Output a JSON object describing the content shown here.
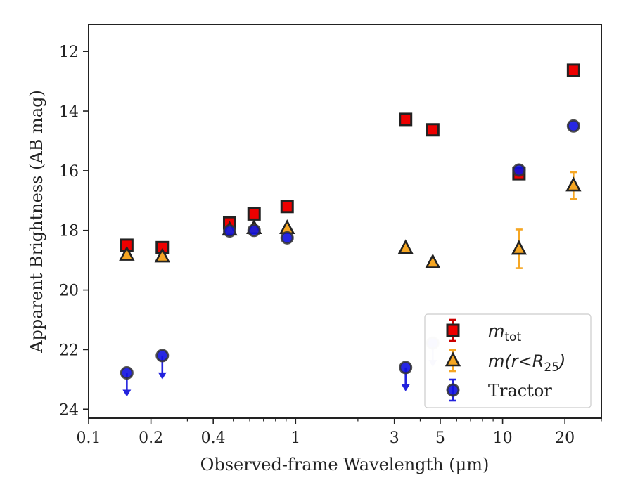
{
  "chart_data": {
    "type": "scatter",
    "xscale": "log",
    "xlim": [
      0.1,
      30
    ],
    "ylim": [
      24.3,
      11.1
    ],
    "yinverted": true,
    "xlabel": "Observed-frame Wavelength (μm)",
    "ylabel": "Apparent Brightness (AB mag)",
    "xticks": [
      0.1,
      0.2,
      0.4,
      1,
      3,
      5,
      10,
      20
    ],
    "xtick_labels": [
      "0.1",
      "0.2",
      "0.4",
      "1",
      "3",
      "5",
      "10",
      "20"
    ],
    "yticks": [
      12,
      14,
      16,
      18,
      20,
      22,
      24
    ],
    "ytick_labels": [
      "12",
      "14",
      "16",
      "18",
      "20",
      "22",
      "24"
    ],
    "legend_position": "lower-right",
    "series": [
      {
        "name": "m_tot",
        "legend_label": "m",
        "legend_sub": "tot",
        "marker": "square",
        "face_color": "#ee0000",
        "edge_color": "#222222",
        "error_color": "#cc0000",
        "points": [
          {
            "x": 0.153,
            "y": 18.5,
            "err": 0.05
          },
          {
            "x": 0.227,
            "y": 18.58,
            "err": 0.05
          },
          {
            "x": 0.48,
            "y": 17.75,
            "err": 0.05
          },
          {
            "x": 0.63,
            "y": 17.45,
            "err": 0.05
          },
          {
            "x": 0.91,
            "y": 17.2,
            "err": 0.05
          },
          {
            "x": 3.4,
            "y": 14.28,
            "err": 0.05
          },
          {
            "x": 4.6,
            "y": 14.63,
            "err": 0.05
          },
          {
            "x": 12.0,
            "y": 16.1,
            "err": 0.12
          },
          {
            "x": 22.0,
            "y": 12.63,
            "err": 0.05
          }
        ]
      },
      {
        "name": "m(r<R25)",
        "legend_label": "m(r<R",
        "legend_sub": "25",
        "legend_close": ")",
        "marker": "triangle",
        "face_color": "#f5a623",
        "edge_color": "#222222",
        "error_color": "#f5a623",
        "points": [
          {
            "x": 0.153,
            "y": 18.82,
            "err": 0.05
          },
          {
            "x": 0.227,
            "y": 18.88,
            "err": 0.05
          },
          {
            "x": 0.48,
            "y": 17.98,
            "err": 0.05
          },
          {
            "x": 0.63,
            "y": 17.93,
            "err": 0.05
          },
          {
            "x": 0.91,
            "y": 17.93,
            "err": 0.05
          },
          {
            "x": 3.4,
            "y": 18.6,
            "err": 0.05
          },
          {
            "x": 4.6,
            "y": 19.08,
            "err": 0.05
          },
          {
            "x": 12.0,
            "y": 18.62,
            "err": 0.65
          },
          {
            "x": 22.0,
            "y": 16.5,
            "err": 0.45
          }
        ]
      },
      {
        "name": "Tractor",
        "legend_label": "Tractor",
        "marker": "circle",
        "face_color": "#1010e0",
        "edge_color": "#333333",
        "error_color": "#2222dd",
        "points": [
          {
            "x": 0.153,
            "y": 22.78,
            "upper_limit": true
          },
          {
            "x": 0.227,
            "y": 22.2,
            "upper_limit": true
          },
          {
            "x": 0.48,
            "y": 18.02,
            "err": 0.05
          },
          {
            "x": 0.63,
            "y": 18.0,
            "err": 0.05
          },
          {
            "x": 0.91,
            "y": 18.25,
            "err": 0.05
          },
          {
            "x": 3.4,
            "y": 22.6,
            "upper_limit": true
          },
          {
            "x": 4.6,
            "y": 21.78,
            "upper_limit": true
          },
          {
            "x": 12.0,
            "y": 15.98,
            "err": 0.05
          },
          {
            "x": 22.0,
            "y": 14.5,
            "err": 0.05
          }
        ]
      }
    ]
  }
}
